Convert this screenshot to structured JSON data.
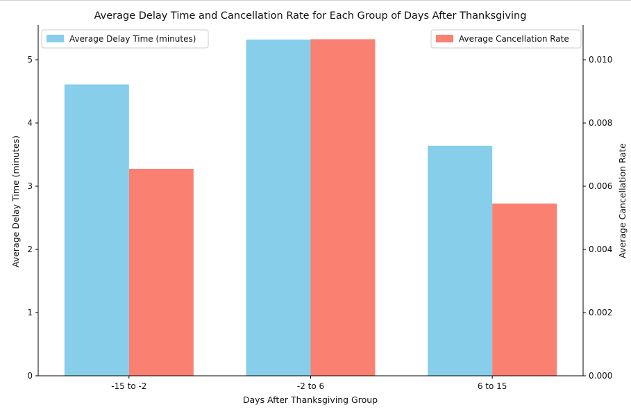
{
  "chart_data": {
    "type": "bar",
    "title": "Average Delay Time and Cancellation Rate for Each Group of Days After Thanksgiving",
    "xlabel": "Days After Thanksgiving Group",
    "categories": [
      "-15 to -2",
      "-2 to 6",
      "6 to 15"
    ],
    "series": [
      {
        "name": "Average Delay Time (minutes)",
        "axis": "left",
        "color": "#87CEEB",
        "values": [
          4.61,
          5.32,
          3.64
        ]
      },
      {
        "name": "Average Cancellation Rate",
        "axis": "right",
        "color": "#FA8072",
        "values": [
          0.00655,
          0.01065,
          0.00545
        ]
      }
    ],
    "y_left": {
      "label": "Average Delay Time (minutes)",
      "label_color": "#87CEEB",
      "ylim": [
        0,
        5.55
      ],
      "ticks": [
        0,
        1,
        2,
        3,
        4,
        5
      ],
      "tick_labels": [
        "0",
        "1",
        "2",
        "3",
        "4",
        "5"
      ]
    },
    "y_right": {
      "label": "Average Cancellation Rate",
      "label_color": "#FA8072",
      "ylim": [
        0,
        0.0111
      ],
      "ticks": [
        0,
        0.002,
        0.004,
        0.006,
        0.008,
        0.01
      ],
      "tick_labels": [
        "0.000",
        "0.002",
        "0.004",
        "0.006",
        "0.008",
        "0.010"
      ]
    },
    "grid": false,
    "legend": [
      {
        "series": 0,
        "placement": "upper-left"
      },
      {
        "series": 1,
        "placement": "upper-right"
      }
    ]
  }
}
